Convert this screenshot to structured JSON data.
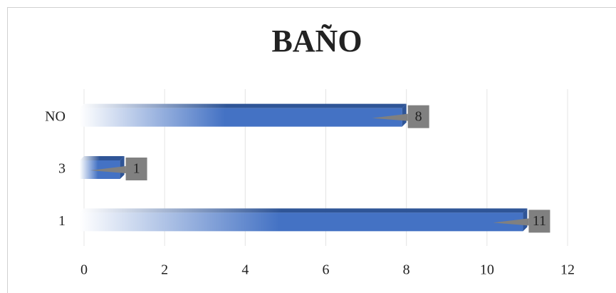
{
  "chart_data": {
    "type": "bar",
    "orientation": "horizontal",
    "title": "BAÑO",
    "categories": [
      "1",
      "3",
      "NO"
    ],
    "values": [
      11,
      1,
      8
    ],
    "color": "#4472c4",
    "xlim": [
      0,
      12
    ],
    "xticks": [
      0,
      2,
      4,
      6,
      8,
      10,
      12
    ],
    "grid": true
  }
}
